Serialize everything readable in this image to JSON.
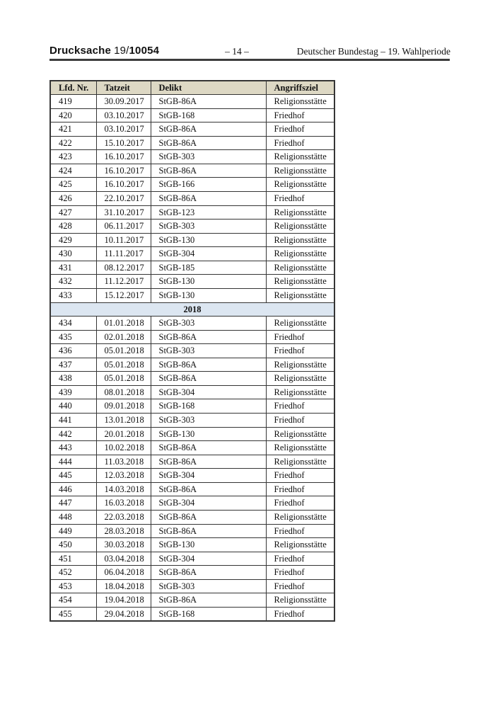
{
  "header": {
    "doc_type": "Drucksache",
    "doc_number_prefix": "19/",
    "doc_number": "10054",
    "page_number": "– 14 –",
    "parliament": "Deutscher Bundestag – 19. Wahlperiode"
  },
  "table": {
    "columns": [
      "Lfd. Nr.",
      "Tatzeit",
      "Delikt",
      "Angriffsziel"
    ],
    "sections": [
      {
        "year_label": null,
        "rows": [
          [
            "419",
            "30.09.2017",
            "StGB-86A",
            "Religionsstätte"
          ],
          [
            "420",
            "03.10.2017",
            "StGB-168",
            "Friedhof"
          ],
          [
            "421",
            "03.10.2017",
            "StGB-86A",
            "Friedhof"
          ],
          [
            "422",
            "15.10.2017",
            "StGB-86A",
            "Friedhof"
          ],
          [
            "423",
            "16.10.2017",
            "StGB-303",
            "Religionsstätte"
          ],
          [
            "424",
            "16.10.2017",
            "StGB-86A",
            "Religionsstätte"
          ],
          [
            "425",
            "16.10.2017",
            "StGB-166",
            "Religionsstätte"
          ],
          [
            "426",
            "22.10.2017",
            "StGB-86A",
            "Friedhof"
          ],
          [
            "427",
            "31.10.2017",
            "StGB-123",
            "Religionsstätte"
          ],
          [
            "428",
            "06.11.2017",
            "StGB-303",
            "Religionsstätte"
          ],
          [
            "429",
            "10.11.2017",
            "StGB-130",
            "Religionsstätte"
          ],
          [
            "430",
            "11.11.2017",
            "StGB-304",
            "Religionsstätte"
          ],
          [
            "431",
            "08.12.2017",
            "StGB-185",
            "Religionsstätte"
          ],
          [
            "432",
            "11.12.2017",
            "StGB-130",
            "Religionsstätte"
          ],
          [
            "433",
            "15.12.2017",
            "StGB-130",
            "Religionsstätte"
          ]
        ]
      },
      {
        "year_label": "2018",
        "rows": [
          [
            "434",
            "01.01.2018",
            "StGB-303",
            "Religionsstätte"
          ],
          [
            "435",
            "02.01.2018",
            "StGB-86A",
            "Friedhof"
          ],
          [
            "436",
            "05.01.2018",
            "StGB-303",
            "Friedhof"
          ],
          [
            "437",
            "05.01.2018",
            "StGB-86A",
            "Religionsstätte"
          ],
          [
            "438",
            "05.01.2018",
            "StGB-86A",
            "Religionsstätte"
          ],
          [
            "439",
            "08.01.2018",
            "StGB-304",
            "Religionsstätte"
          ],
          [
            "440",
            "09.01.2018",
            "StGB-168",
            "Friedhof"
          ],
          [
            "441",
            "13.01.2018",
            "StGB-303",
            "Friedhof"
          ],
          [
            "442",
            "20.01.2018",
            "StGB-130",
            "Religionsstätte"
          ],
          [
            "443",
            "10.02.2018",
            "StGB-86A",
            "Religionsstätte"
          ],
          [
            "444",
            "11.03.2018",
            "StGB-86A",
            "Religionsstätte"
          ],
          [
            "445",
            "12.03.2018",
            "StGB-304",
            "Friedhof"
          ],
          [
            "446",
            "14.03.2018",
            "StGB-86A",
            "Friedhof"
          ],
          [
            "447",
            "16.03.2018",
            "StGB-304",
            "Friedhof"
          ],
          [
            "448",
            "22.03.2018",
            "StGB-86A",
            "Religionsstätte"
          ],
          [
            "449",
            "28.03.2018",
            "StGB-86A",
            "Friedhof"
          ],
          [
            "450",
            "30.03.2018",
            "StGB-130",
            "Religionsstätte"
          ],
          [
            "451",
            "03.04.2018",
            "StGB-304",
            "Friedhof"
          ],
          [
            "452",
            "06.04.2018",
            "StGB-86A",
            "Friedhof"
          ],
          [
            "453",
            "18.04.2018",
            "StGB-303",
            "Friedhof"
          ],
          [
            "454",
            "19.04.2018",
            "StGB-86A",
            "Religionsstätte"
          ],
          [
            "455",
            "29.04.2018",
            "StGB-168",
            "Friedhof"
          ]
        ]
      }
    ]
  },
  "colors": {
    "column_header_bg": "#ddd8c4",
    "year_row_bg": "#dce6f1",
    "table_border": "#353535",
    "text": "#111111"
  }
}
